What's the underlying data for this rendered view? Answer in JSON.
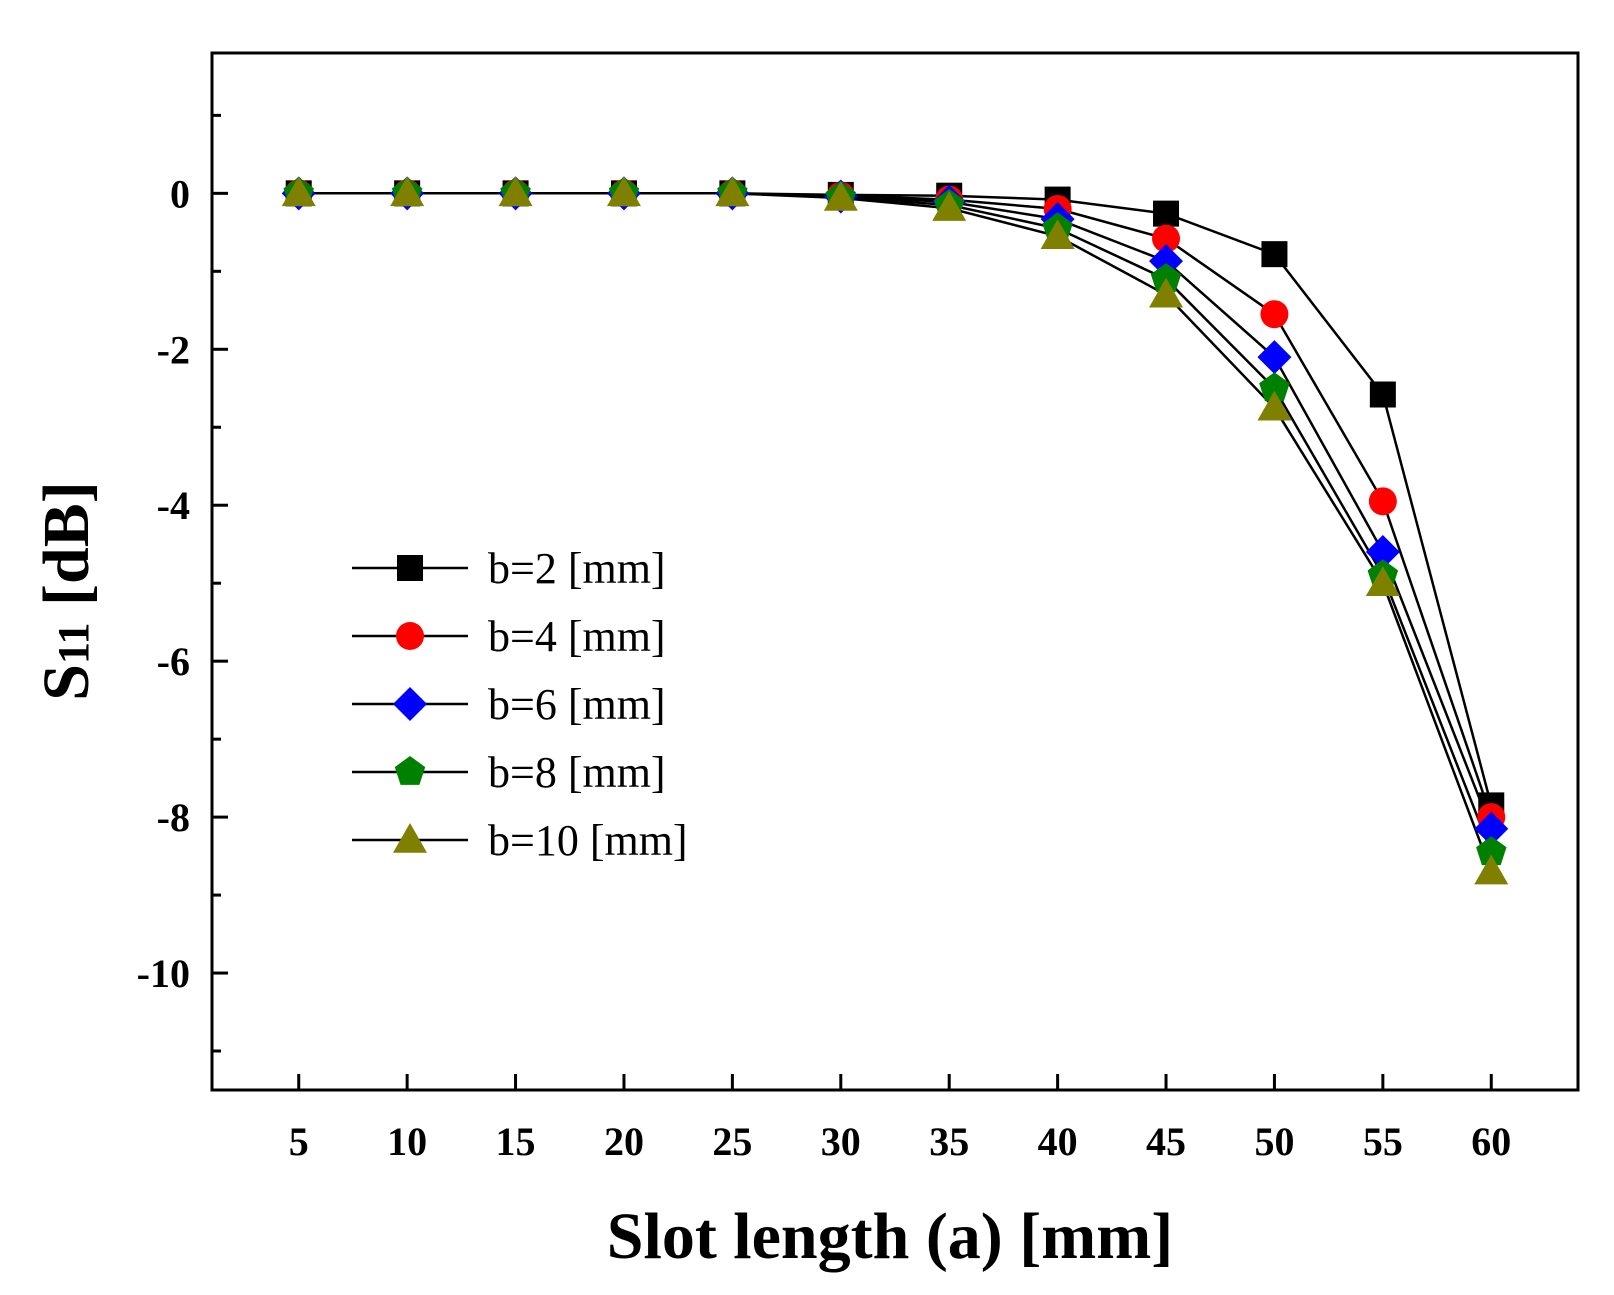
{
  "chart_data": {
    "type": "line",
    "title": "",
    "xlabel": "Slot length (a) [mm]",
    "ylabel_main": "S",
    "ylabel_sub": "11",
    "ylabel_unit": " [dB]",
    "x": [
      5,
      10,
      15,
      20,
      25,
      30,
      35,
      40,
      45,
      50,
      55,
      60
    ],
    "xlim": [
      1,
      64
    ],
    "ylim": [
      -11.5,
      1.8
    ],
    "yticks": [
      0,
      -2,
      -4,
      -6,
      -8,
      -10
    ],
    "ytick_labels": [
      "0",
      "-2",
      "-4",
      "-6",
      "-8",
      "-10"
    ],
    "xtick_labels": [
      "5",
      "10",
      "15",
      "20",
      "25",
      "30",
      "35",
      "40",
      "45",
      "50",
      "55",
      "60"
    ],
    "grid": false,
    "legend_position": "left-middle",
    "series": [
      {
        "name": "b=2 [mm]",
        "marker": "square",
        "color": "#000000",
        "values": [
          0,
          0,
          0,
          0,
          0,
          -0.02,
          -0.03,
          -0.08,
          -0.26,
          -0.78,
          -2.58,
          -7.85
        ]
      },
      {
        "name": "b=4 [mm]",
        "marker": "circle",
        "color": "#ff0000",
        "values": [
          0,
          0,
          0,
          0,
          0,
          -0.03,
          -0.08,
          -0.2,
          -0.58,
          -1.55,
          -3.95,
          -8.0
        ]
      },
      {
        "name": "b=6 [mm]",
        "marker": "diamond",
        "color": "#0000ff",
        "values": [
          0,
          0,
          0,
          0,
          0,
          -0.04,
          -0.11,
          -0.33,
          -0.87,
          -2.1,
          -4.6,
          -8.15
        ]
      },
      {
        "name": "b=8 [mm]",
        "marker": "pentagon",
        "color": "#008000",
        "values": [
          0,
          0,
          0,
          0,
          0,
          -0.05,
          -0.15,
          -0.45,
          -1.1,
          -2.5,
          -4.9,
          -8.45
        ]
      },
      {
        "name": "b=10 [mm]",
        "marker": "triangle",
        "color": "#808000",
        "values": [
          0,
          0,
          0,
          0,
          0,
          -0.06,
          -0.19,
          -0.55,
          -1.3,
          -2.75,
          -5.0,
          -8.7
        ]
      }
    ]
  }
}
